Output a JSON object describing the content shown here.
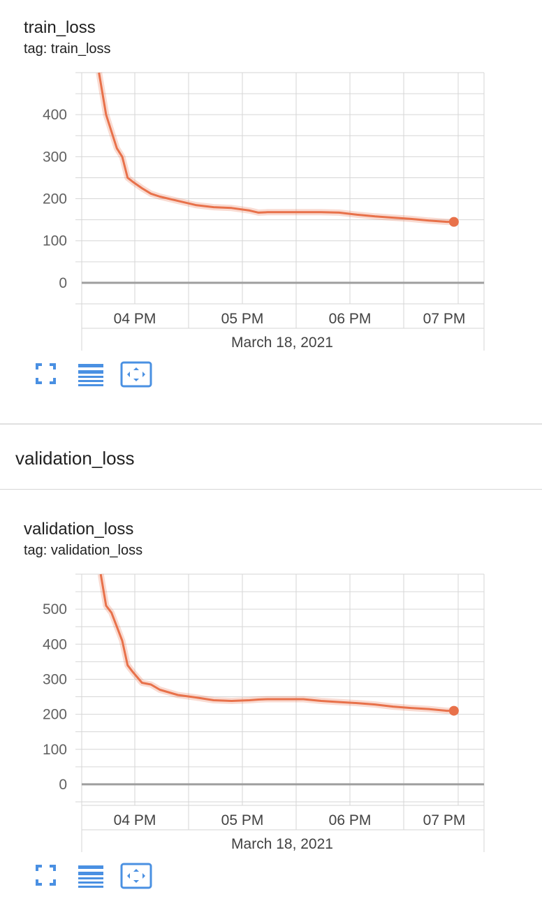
{
  "cards": [
    {
      "title": "train_loss",
      "tag": "tag: train_loss",
      "x_date_label": "March 18, 2021",
      "x_ticks": [
        "04 PM",
        "05 PM",
        "06 PM",
        "07 PM"
      ]
    },
    {
      "title": "validation_loss",
      "tag": "tag: validation_loss",
      "x_date_label": "March 18, 2021",
      "x_ticks": [
        "04 PM",
        "05 PM",
        "06 PM",
        "07 PM"
      ]
    }
  ],
  "groups": [
    {
      "title": "validation_loss"
    }
  ],
  "toolbar": {
    "buttons": [
      {
        "name": "fullscreen",
        "icon": "fullscreen-icon"
      },
      {
        "name": "toggle-log-scale",
        "icon": "lines-icon"
      },
      {
        "name": "fit-domain",
        "icon": "fit-to-data-icon"
      }
    ]
  },
  "colors": {
    "series": "#e8714a",
    "grid": "#d6d6d6",
    "zero_line": "#9e9e9e",
    "icon": "#4a90e2"
  },
  "chart_data": [
    {
      "type": "line",
      "title": "train_loss",
      "xlabel": "March 18, 2021",
      "ylabel": "",
      "x_tick_labels": [
        "04 PM",
        "05 PM",
        "06 PM",
        "07 PM"
      ],
      "x_tick_times": [
        "15:56",
        "16:56",
        "17:56",
        "18:56"
      ],
      "y_ticks": [
        0,
        100,
        200,
        300,
        400
      ],
      "ylim": [
        -50,
        500
      ],
      "grid": true,
      "series": [
        {
          "x": [
            "15:36",
            "15:40",
            "15:43",
            "15:46",
            "15:49",
            "15:52",
            "15:55",
            "16:00",
            "16:05",
            "16:10",
            "16:20",
            "16:30",
            "16:40",
            "16:50",
            "17:00",
            "17:05",
            "17:10",
            "17:30",
            "17:40",
            "17:50",
            "18:00",
            "18:10",
            "18:20",
            "18:30",
            "18:40",
            "18:50",
            "18:54"
          ],
          "values": [
            500,
            400,
            360,
            320,
            300,
            250,
            240,
            225,
            212,
            205,
            195,
            185,
            180,
            178,
            172,
            167,
            168,
            168,
            168,
            167,
            162,
            158,
            155,
            152,
            148,
            145,
            145
          ]
        }
      ]
    },
    {
      "type": "line",
      "title": "validation_loss",
      "xlabel": "March 18, 2021",
      "ylabel": "",
      "x_tick_labels": [
        "04 PM",
        "05 PM",
        "06 PM",
        "07 PM"
      ],
      "x_tick_times": [
        "15:56",
        "16:56",
        "17:56",
        "18:56"
      ],
      "y_ticks": [
        0,
        100,
        200,
        300,
        400,
        500
      ],
      "ylim": [
        -60,
        600
      ],
      "grid": true,
      "series": [
        {
          "x": [
            "15:37",
            "15:40",
            "15:43",
            "15:46",
            "15:49",
            "15:52",
            "15:55",
            "16:00",
            "16:05",
            "16:10",
            "16:20",
            "16:30",
            "16:40",
            "16:50",
            "17:00",
            "17:05",
            "17:10",
            "17:30",
            "17:40",
            "17:50",
            "18:00",
            "18:10",
            "18:20",
            "18:30",
            "18:40",
            "18:50",
            "18:54"
          ],
          "values": [
            600,
            510,
            490,
            450,
            410,
            340,
            320,
            290,
            285,
            270,
            255,
            248,
            240,
            238,
            240,
            242,
            243,
            243,
            238,
            235,
            232,
            228,
            222,
            218,
            215,
            210,
            210
          ]
        }
      ]
    }
  ]
}
